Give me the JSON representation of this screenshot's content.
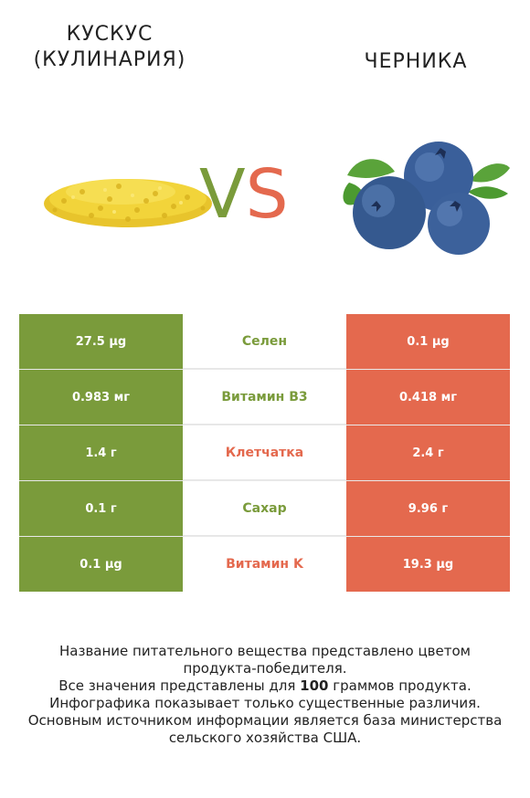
{
  "header": {
    "left_title_line1": "КУСКУС",
    "left_title_line2": "(КУЛИНАРИЯ)",
    "right_title": "ЧЕРНИКА",
    "vs_v": "V",
    "vs_s": "S"
  },
  "colors": {
    "left_accent": "#7a9b3b",
    "right_accent": "#e4694e"
  },
  "rows": [
    {
      "left": "27.5 µg",
      "nutrient": "Селен",
      "winner": "left",
      "right": "0.1 µg"
    },
    {
      "left": "0.983 мг",
      "nutrient": "Витамин B3",
      "winner": "left",
      "right": "0.418 мг"
    },
    {
      "left": "1.4 г",
      "nutrient": "Клетчатка",
      "winner": "right",
      "right": "2.4 г"
    },
    {
      "left": "0.1 г",
      "nutrient": "Сахар",
      "winner": "left",
      "right": "9.96 г"
    },
    {
      "left": "0.1 µg",
      "nutrient": "Витамин K",
      "winner": "right",
      "right": "19.3 µg"
    }
  ],
  "footer": {
    "line1": "Название питательного вещества представлено цветом",
    "line2": "продукта-победителя.",
    "line3_pre": "Все значения представлены для ",
    "line3_bold": "100",
    "line3_post": " граммов продукта.",
    "line4": "Инфографика показывает только существенные различия.",
    "line5": "Основным источником информации является база министерства",
    "line6": "сельского хозяйства США."
  }
}
